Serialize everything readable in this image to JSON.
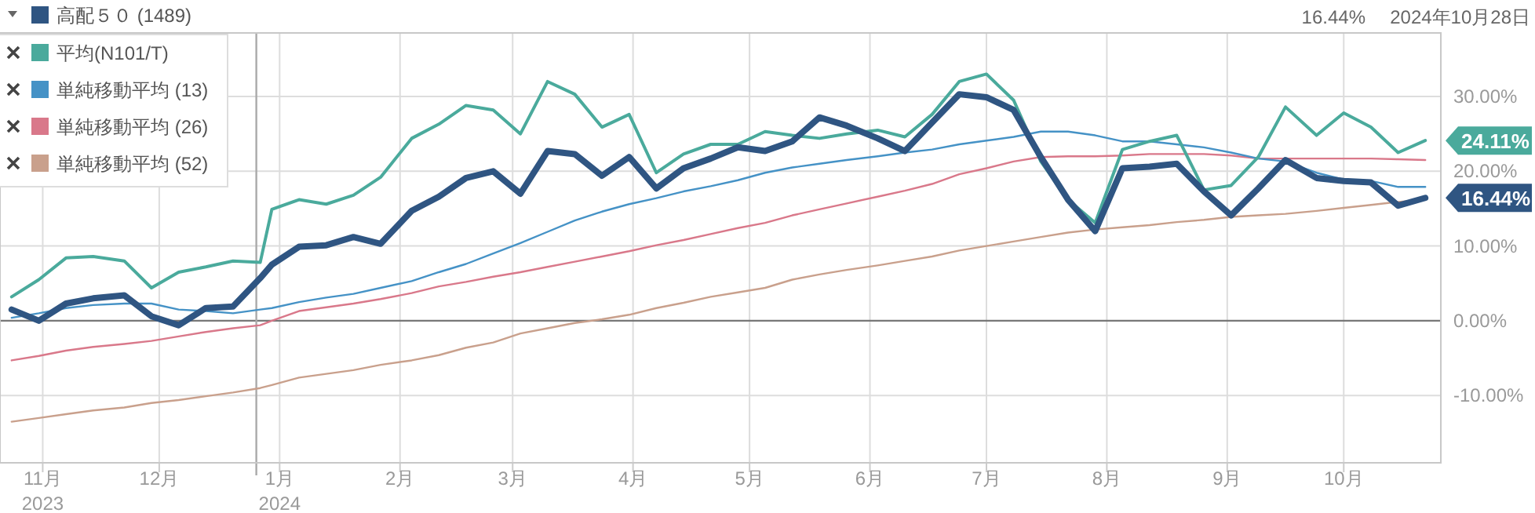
{
  "chart_data": {
    "type": "line",
    "x": [
      "2023-10-24",
      "2023-10-31",
      "2023-11-07",
      "2023-11-14",
      "2023-11-22",
      "2023-11-29",
      "2023-12-06",
      "2023-12-13",
      "2023-12-20",
      "2023-12-27",
      "2023-12-30",
      "2024-01-06",
      "2024-01-13",
      "2024-01-20",
      "2024-01-27",
      "2024-02-04",
      "2024-02-11",
      "2024-02-18",
      "2024-02-25",
      "2024-03-03",
      "2024-03-10",
      "2024-03-17",
      "2024-03-24",
      "2024-03-31",
      "2024-04-07",
      "2024-04-14",
      "2024-04-21",
      "2024-04-28",
      "2024-05-05",
      "2024-05-12",
      "2024-05-19",
      "2024-05-26",
      "2024-06-03",
      "2024-06-10",
      "2024-06-17",
      "2024-06-24",
      "2024-07-01",
      "2024-07-08",
      "2024-07-15",
      "2024-07-22",
      "2024-07-29",
      "2024-08-05",
      "2024-08-12",
      "2024-08-19",
      "2024-08-26",
      "2024-09-02",
      "2024-09-09",
      "2024-09-16",
      "2024-09-24",
      "2024-10-01",
      "2024-10-08",
      "2024-10-15",
      "2024-10-22"
    ],
    "series": [
      {
        "name": "高配５０ (1489)",
        "color": "#2f5582",
        "values": [
          1.5,
          0,
          2.3,
          3,
          3.4,
          0.6,
          -0.6,
          1.7,
          1.9,
          5.7,
          7.5,
          9.9,
          10.1,
          11.2,
          10.3,
          14.7,
          16.6,
          19.1,
          20,
          17,
          22.7,
          22.3,
          19.4,
          21.9,
          17.7,
          20.4,
          21.7,
          23.2,
          22.7,
          24,
          27.2,
          26.1,
          24.4,
          22.7,
          26.5,
          30.3,
          29.9,
          28.2,
          21.9,
          16.2,
          12,
          20.4,
          20.6,
          21,
          17.3,
          14.1,
          17.7,
          21.5,
          19.1,
          18.7,
          18.5,
          15.4,
          16.44
        ],
        "value_labels": [
          null,
          null,
          null,
          null,
          null,
          null,
          null,
          null,
          null,
          null,
          null,
          null,
          null,
          null,
          null,
          null,
          null,
          null,
          null,
          null,
          null,
          null,
          null,
          null,
          null,
          null,
          null,
          null,
          null,
          null,
          null,
          null,
          null,
          null,
          null,
          null,
          null,
          null,
          null,
          null,
          null,
          null,
          null,
          null,
          null,
          null,
          null,
          null,
          null,
          null,
          null,
          null,
          "16.44%"
        ]
      },
      {
        "name": "平均(N101/T)",
        "color": "#4aaa9c",
        "values": [
          3.2,
          5.5,
          8.4,
          8.6,
          8,
          4.4,
          6.5,
          7.2,
          8,
          7.8,
          14.9,
          16.2,
          15.6,
          16.8,
          19.2,
          24.4,
          26.3,
          28.8,
          28.2,
          25,
          32,
          30.3,
          25.9,
          27.6,
          19.8,
          22.3,
          23.6,
          23.6,
          25.3,
          24.8,
          24.4,
          25,
          25.5,
          24.6,
          27.6,
          32,
          33,
          29.5,
          21.3,
          16.2,
          13.1,
          22.9,
          24,
          24.8,
          17.5,
          18.1,
          21.9,
          28.6,
          24.8,
          27.8,
          25.9,
          22.5,
          24.11
        ],
        "value_labels": [
          null,
          null,
          null,
          null,
          null,
          null,
          null,
          null,
          null,
          null,
          null,
          null,
          null,
          null,
          null,
          null,
          null,
          null,
          null,
          null,
          null,
          null,
          null,
          null,
          null,
          null,
          null,
          null,
          null,
          null,
          null,
          null,
          null,
          null,
          null,
          null,
          null,
          null,
          null,
          null,
          null,
          null,
          null,
          null,
          null,
          null,
          null,
          null,
          null,
          null,
          null,
          null,
          "24.11%"
        ]
      },
      {
        "name": "単純移動平均 (13)",
        "color": "#4592c6",
        "values": [
          0.4,
          1.0,
          1.7,
          2.1,
          2.3,
          2.3,
          1.5,
          1.3,
          1.0,
          1.5,
          1.7,
          2.5,
          3.1,
          3.6,
          4.4,
          5.3,
          6.5,
          7.6,
          9.0,
          10.4,
          11.9,
          13.4,
          14.6,
          15.6,
          16.4,
          17.3,
          18.0,
          18.8,
          19.8,
          20.5,
          21.0,
          21.5,
          22.0,
          22.5,
          22.9,
          23.6,
          24.1,
          24.6,
          25.3,
          25.3,
          24.8,
          24.0,
          24.0,
          23.6,
          23.2,
          22.5,
          21.7,
          21.3,
          19.8,
          18.9,
          18.7,
          17.9,
          17.9
        ]
      },
      {
        "name": "単純移動平均 (26)",
        "color": "#d9788a",
        "values": [
          -5.3,
          -4.7,
          -4.0,
          -3.5,
          -3.1,
          -2.7,
          -2.1,
          -1.5,
          -1.0,
          -0.6,
          0,
          1.3,
          1.8,
          2.3,
          2.9,
          3.7,
          4.6,
          5.2,
          5.9,
          6.5,
          7.2,
          7.9,
          8.6,
          9.3,
          10.1,
          10.8,
          11.6,
          12.4,
          13.1,
          14.1,
          14.9,
          15.7,
          16.6,
          17.4,
          18.3,
          19.6,
          20.4,
          21.3,
          21.9,
          22.0,
          22.0,
          22.1,
          22.3,
          22.3,
          22.3,
          22.1,
          21.7,
          21.7,
          21.7,
          21.7,
          21.7,
          21.6,
          21.5
        ]
      },
      {
        "name": "単純移動平均 (52)",
        "color": "#c9a08c",
        "values": [
          -13.5,
          -13.0,
          -12.5,
          -12.0,
          -11.6,
          -11.0,
          -10.6,
          -10.1,
          -9.6,
          -9.0,
          -8.6,
          -7.6,
          -7.1,
          -6.6,
          -5.9,
          -5.3,
          -4.6,
          -3.6,
          -2.9,
          -1.7,
          -1.0,
          -0.3,
          0.2,
          0.8,
          1.7,
          2.4,
          3.2,
          3.8,
          4.4,
          5.5,
          6.2,
          6.8,
          7.4,
          8.0,
          8.6,
          9.4,
          10.0,
          10.6,
          11.2,
          11.8,
          12.2,
          12.5,
          12.8,
          13.2,
          13.5,
          13.9,
          14.1,
          14.3,
          14.7,
          15.1,
          15.5,
          15.9,
          16.2
        ]
      }
    ],
    "xlim": [
      "2023-10-21",
      "2024-10-26"
    ],
    "xticks": [
      {
        "value": "2023-11-01",
        "label": "11月\n2023"
      },
      {
        "value": "2023-12-01",
        "label": "12月"
      },
      {
        "value": "2024-01-01",
        "label": "1月\n2024"
      },
      {
        "value": "2024-02-01",
        "label": "2月"
      },
      {
        "value": "2024-03-01",
        "label": "3月"
      },
      {
        "value": "2024-04-01",
        "label": "4月"
      },
      {
        "value": "2024-05-01",
        "label": "5月"
      },
      {
        "value": "2024-06-01",
        "label": "6月"
      },
      {
        "value": "2024-07-01",
        "label": "7月"
      },
      {
        "value": "2024-08-01",
        "label": "8月"
      },
      {
        "value": "2024-09-01",
        "label": "9月"
      },
      {
        "value": "2024-10-01",
        "label": "10月"
      }
    ],
    "ylim": [
      -19,
      38.5
    ],
    "yticks": [
      {
        "value": -10,
        "label": "-10.00%"
      },
      {
        "value": 0,
        "label": "0.00%"
      },
      {
        "value": 10,
        "label": "10.00%"
      },
      {
        "value": 20,
        "label": "20.00%"
      },
      {
        "value": 30,
        "label": "30.00%"
      }
    ],
    "ref_lines": [
      {
        "axis": "y",
        "value": 0,
        "color": "#777777"
      },
      {
        "axis": "x",
        "value": "2023-12-26",
        "color": "#aaaaaa"
      }
    ],
    "annotations": [
      "16.44%",
      "2024年10月28日"
    ],
    "grid": true,
    "legend": "top left",
    "marker": "none",
    "line_style": "solid"
  }
}
